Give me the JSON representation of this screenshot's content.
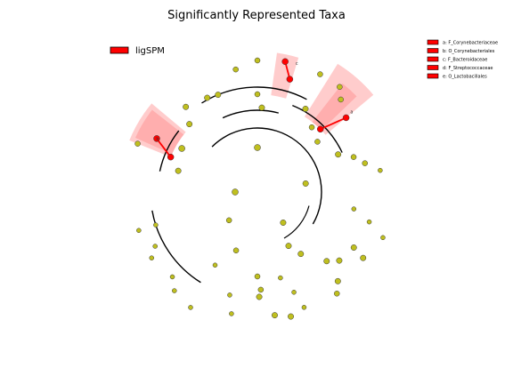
{
  "title": "Significantly Represented Taxa",
  "legend": {
    "group_label": "ligSPM",
    "group_color": "#ff0000",
    "taxa": [
      {
        "letter": "a",
        "text": "a: F_Corynebacteriaceae"
      },
      {
        "letter": "b",
        "text": "b: O_Corynebacteriales"
      },
      {
        "letter": "c",
        "text": "c: F_Bacteroidaceae"
      },
      {
        "letter": "d",
        "text": "d: F_Streptococcaceae"
      },
      {
        "letter": "e",
        "text": "e: O_Lactobacillales"
      }
    ]
  },
  "colors": {
    "node": "#bfbf1f",
    "highlight": "#ff0000",
    "shade": "#ff9999"
  }
}
